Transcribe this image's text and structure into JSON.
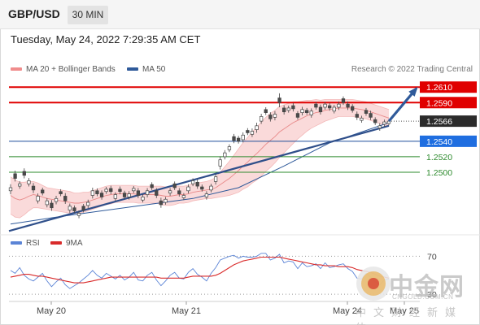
{
  "header": {
    "symbol": "GBP/USD",
    "timeframe": "30 MIN"
  },
  "timestamp": "Tuesday, May 24, 2022 7:29:35 AM CET",
  "legend": {
    "bb_label": "MA 20 + Bollinger Bands",
    "ma50_label": "MA 50"
  },
  "credit": "Research © 2022 Trading Central",
  "rsi_legend": {
    "rsi_label": "RSI",
    "ma_label": "9MA"
  },
  "watermark": {
    "brand": "中金网",
    "url": "CNGOLD.COM.CN",
    "tagline": "中文财经新媒体"
  },
  "colors": {
    "up": "#4a4a4a",
    "down": "#4a4a4a",
    "resistance": "#e00000",
    "support": "#1f4e9b",
    "support_minor": "#2e8b2e",
    "last_price": "#333333",
    "bb_fill": "#f9d4d4",
    "ma20": "#e88a8a",
    "ma50": "#2f5a9a",
    "rsi": "#5b84d6",
    "rsi_ma": "#d92b2b"
  },
  "chart_data": [
    {
      "type": "line",
      "title": "GBP/USD",
      "x_labels": [
        "May 20",
        "May 21",
        "May 24",
        "May 25"
      ],
      "y_range": [
        1.2418,
        1.2626
      ],
      "series_candles": {
        "name": "GBP/USD",
        "close": [
          1.248,
          1.2492,
          1.2485,
          1.2496,
          1.2489,
          1.2477,
          1.2469,
          1.2473,
          1.2463,
          1.2454,
          1.2466,
          1.2472,
          1.2463,
          1.2456,
          1.245,
          1.2447,
          1.2451,
          1.2461,
          1.2476,
          1.2472,
          1.2468,
          1.2478,
          1.2475,
          1.2471,
          1.2475,
          1.2468,
          1.2472,
          1.2479,
          1.247,
          1.2468,
          1.2476,
          1.248,
          1.247,
          1.2458,
          1.2465,
          1.2476,
          1.248,
          1.2472,
          1.247,
          1.2481,
          1.2489,
          1.2482,
          1.2478,
          1.2472,
          1.2482,
          1.2494,
          1.2516,
          1.2525,
          1.2533,
          1.2541,
          1.254,
          1.2548,
          1.2551,
          1.2553,
          1.256,
          1.2572,
          1.2577,
          1.2569,
          1.2575,
          1.259,
          1.2578,
          1.2583,
          1.2582,
          1.2571,
          1.2581,
          1.2577,
          1.2579,
          1.2584,
          1.2578,
          1.2588,
          1.2583,
          1.2584,
          1.2588,
          1.259,
          1.2584,
          1.258,
          1.2571,
          1.257,
          1.2576,
          1.2571,
          1.2564,
          1.256,
          1.2565,
          1.2566
        ],
        "open_offset": [
          -0.0004,
          0.0006,
          -0.0003,
          0.0005,
          -0.0004,
          0.0005,
          -0.0006,
          0.0004,
          -0.0005,
          0.0006,
          -0.0004,
          0.0003,
          0.0006,
          -0.0005,
          0.0004,
          -0.0003,
          0.0005,
          -0.0004,
          -0.0006,
          0.0004,
          0.0005,
          -0.0003,
          0.0004,
          -0.0005,
          0.0003,
          0.0005,
          -0.0004,
          -0.0003,
          0.0006,
          -0.0004,
          -0.0005,
          0.0004,
          0.0006,
          0.0005,
          -0.0004,
          -0.0003,
          0.0005,
          0.0004,
          -0.0003,
          -0.0005,
          -0.0004,
          0.0005,
          0.0003,
          -0.0004,
          -0.0005,
          -0.0006,
          -0.0008,
          -0.0005,
          -0.0004,
          0.0005,
          0.0004,
          -0.0006,
          0.0003,
          -0.0004,
          -0.0005,
          -0.0006,
          0.0004,
          0.0005,
          -0.0004,
          0.0006,
          0.0005,
          -0.0003,
          0.0004,
          0.0005,
          -0.0004,
          0.0003,
          -0.0005,
          0.0004,
          0.0006,
          -0.0004,
          0.0003,
          -0.0005,
          -0.0004,
          0.0005,
          0.0004,
          0.0005,
          0.0004,
          -0.0003,
          0.0004,
          0.0005,
          0.0004,
          -0.0003,
          -0.0003,
          -0.0003
        ],
        "wick": [
          0.0009,
          0.0008,
          0.0007,
          0.0008,
          0.0007,
          0.0008,
          0.0007,
          0.0006,
          0.0007,
          0.0008,
          0.0007,
          0.0006,
          0.0008,
          0.0007,
          0.0006,
          0.0007,
          0.0006,
          0.0007,
          0.0008,
          0.0006,
          0.0007,
          0.0006,
          0.0007,
          0.0006,
          0.0007,
          0.0006,
          0.0007,
          0.0006,
          0.0007,
          0.0006,
          0.0007,
          0.0006,
          0.0007,
          0.0008,
          0.0006,
          0.0007,
          0.0006,
          0.0007,
          0.0006,
          0.0007,
          0.0006,
          0.0007,
          0.0006,
          0.0007,
          0.0006,
          0.0008,
          0.0009,
          0.0007,
          0.0006,
          0.0007,
          0.0006,
          0.0007,
          0.0006,
          0.0007,
          0.0008,
          0.0007,
          0.0006,
          0.0007,
          0.0008,
          0.0012,
          0.0007,
          0.0006,
          0.0007,
          0.0006,
          0.0007,
          0.0006,
          0.0007,
          0.0006,
          0.0007,
          0.0006,
          0.0007,
          0.0006,
          0.0007,
          0.0006,
          0.0007,
          0.0006,
          0.0007,
          0.0006,
          0.0006,
          0.0007,
          0.0006,
          0.0007,
          0.0006,
          0.0005
        ]
      },
      "ma20": [
        1.247,
        1.2466,
        1.2464,
        1.2466,
        1.2469,
        1.2471,
        1.247,
        1.2468,
        1.2466,
        1.2465,
        1.2464,
        1.2463,
        1.2462,
        1.2461,
        1.246,
        1.246,
        1.2461,
        1.2462,
        1.2464,
        1.2466,
        1.2468,
        1.247,
        1.2471,
        1.2472,
        1.2472,
        1.2472,
        1.2472,
        1.2472,
        1.2471,
        1.2471,
        1.2471,
        1.2471,
        1.2471,
        1.247,
        1.2469,
        1.2469,
        1.247,
        1.2471,
        1.2471,
        1.2472,
        1.2474,
        1.2475,
        1.2476,
        1.2477,
        1.2478,
        1.248,
        1.2484,
        1.2488,
        1.2492,
        1.2497,
        1.2502,
        1.2508,
        1.2513,
        1.2519,
        1.2524,
        1.253,
        1.2536,
        1.2541,
        1.2546,
        1.2552,
        1.2556,
        1.256,
        1.2564,
        1.2567,
        1.257,
        1.2573,
        1.2575,
        1.2577,
        1.2578,
        1.258,
        1.2581,
        1.2582,
        1.2583,
        1.2583,
        1.2583,
        1.2583,
        1.2582,
        1.2581,
        1.258,
        1.2578,
        1.2576,
        1.2574,
        1.2572,
        1.257
      ],
      "bb_width": [
        0.0024,
        0.0024,
        0.0023,
        0.0021,
        0.0019,
        0.0017,
        0.0016,
        0.0015,
        0.0014,
        0.0014,
        0.0014,
        0.0014,
        0.0014,
        0.0014,
        0.0013,
        0.0013,
        0.0013,
        0.0012,
        0.0012,
        0.0012,
        0.0012,
        0.0012,
        0.0012,
        0.0011,
        0.0011,
        0.0011,
        0.0011,
        0.0011,
        0.0011,
        0.0011,
        0.0011,
        0.0011,
        0.0011,
        0.0012,
        0.0012,
        0.0012,
        0.0012,
        0.0011,
        0.0011,
        0.0011,
        0.0011,
        0.0011,
        0.0011,
        0.0011,
        0.0012,
        0.0013,
        0.0016,
        0.0019,
        0.0022,
        0.0025,
        0.0028,
        0.003,
        0.0032,
        0.0033,
        0.0034,
        0.0035,
        0.0035,
        0.0035,
        0.0034,
        0.0033,
        0.0031,
        0.0029,
        0.0027,
        0.0024,
        0.0022,
        0.002,
        0.0018,
        0.0017,
        0.0015,
        0.0014,
        0.0013,
        0.0012,
        0.0011,
        0.0011,
        0.0011,
        0.0011,
        0.0011,
        0.0011,
        0.0011,
        0.0011,
        0.0011,
        0.0011,
        0.0011,
        0.0011
      ],
      "ma50_x": [
        0,
        10,
        20,
        30,
        40,
        50,
        60,
        70,
        83
      ],
      "ma50": [
        1.2433,
        1.2442,
        1.245,
        1.2458,
        1.2466,
        1.248,
        1.2508,
        1.2538,
        1.2564
      ],
      "trendline": {
        "from": [
          0,
          1.2424
        ],
        "to": [
          83,
          1.256
        ]
      },
      "projection_arrow": {
        "from": [
          83,
          1.2566
        ],
        "to": [
          89,
          1.2608
        ]
      },
      "levels": [
        {
          "value": "1.2610",
          "kind": "resistance"
        },
        {
          "value": "1.2590",
          "kind": "resistance"
        },
        {
          "value": "1.2566",
          "kind": "last"
        },
        {
          "value": "1.2540",
          "kind": "support"
        },
        {
          "value": "1.2520",
          "kind": "support_minor"
        },
        {
          "value": "1.2500",
          "kind": "support_minor"
        }
      ]
    },
    {
      "type": "line",
      "title": "RSI",
      "y_range": [
        0,
        100
      ],
      "reference_lines": [
        30,
        70
      ],
      "y_labels": [
        "70",
        "30"
      ],
      "rsi": [
        55,
        52,
        58,
        50,
        46,
        44,
        48,
        52,
        44,
        38,
        43,
        47,
        40,
        36,
        39,
        42,
        46,
        50,
        55,
        50,
        47,
        52,
        49,
        46,
        50,
        45,
        48,
        53,
        45,
        44,
        50,
        53,
        45,
        39,
        44,
        50,
        53,
        47,
        46,
        53,
        57,
        51,
        48,
        44,
        52,
        58,
        66,
        68,
        70,
        71,
        68,
        70,
        69,
        69,
        70,
        73,
        73,
        66,
        68,
        72,
        63,
        65,
        64,
        57,
        63,
        59,
        60,
        62,
        57,
        63,
        58,
        59,
        61,
        62,
        57,
        54,
        47,
        46,
        52,
        48,
        43,
        40,
        45,
        46
      ],
      "rsi_ma": [
        48,
        49,
        50,
        51,
        51,
        50,
        49,
        49,
        48,
        47,
        46,
        45,
        44,
        43,
        42,
        42,
        42,
        43,
        44,
        45,
        46,
        47,
        48,
        48,
        48,
        48,
        48,
        48,
        48,
        48,
        48,
        48,
        48,
        47,
        47,
        47,
        47,
        47,
        47,
        48,
        49,
        49,
        49,
        49,
        49,
        50,
        52,
        55,
        58,
        61,
        63,
        65,
        66,
        67,
        68,
        69,
        69,
        69,
        69,
        69,
        68,
        67,
        66,
        65,
        64,
        63,
        62,
        61,
        61,
        60,
        60,
        60,
        59,
        59,
        59,
        58,
        56,
        55,
        54,
        53,
        51,
        49,
        48,
        47
      ]
    }
  ]
}
